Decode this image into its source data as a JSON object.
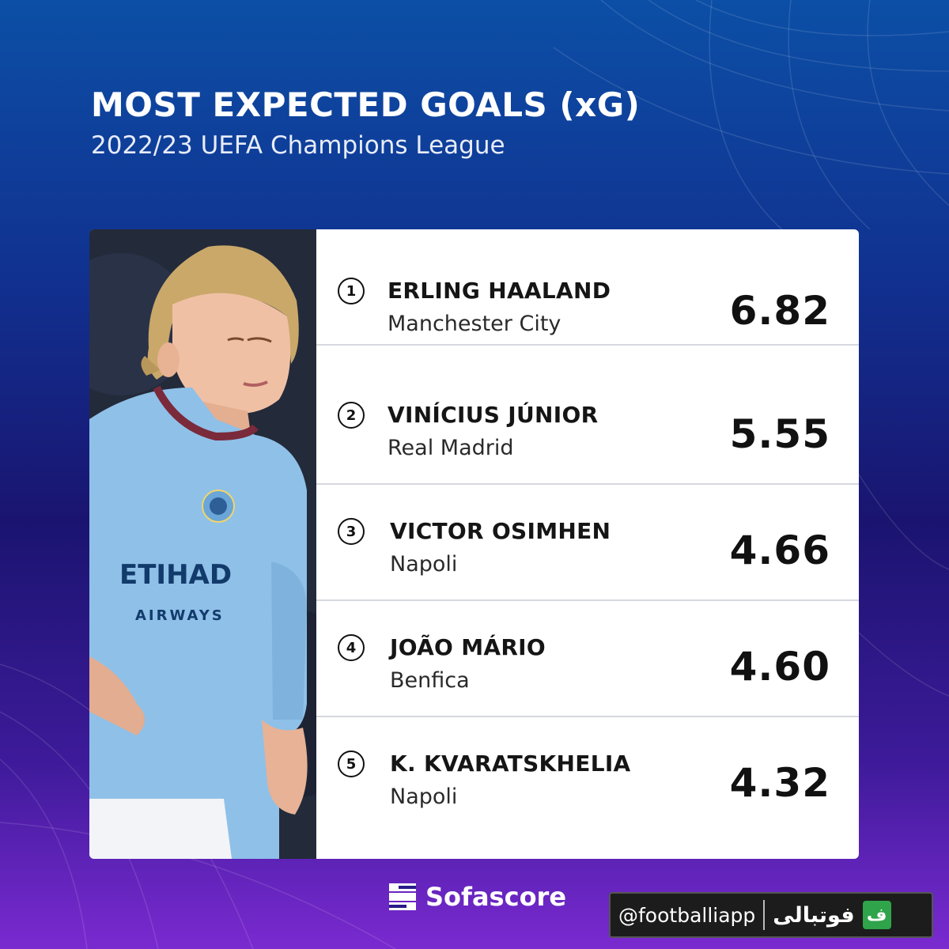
{
  "header": {
    "title": "MOST EXPECTED GOALS (xG)",
    "subtitle": "2022/23 UEFA Champions League"
  },
  "players": [
    {
      "rank": "1",
      "name": "ERLING HAALAND",
      "club": "Manchester City",
      "xg": "6.82"
    },
    {
      "rank": "2",
      "name": "VINÍCIUS JÚNIOR",
      "club": "Real Madrid",
      "xg": "5.55"
    },
    {
      "rank": "3",
      "name": "VICTOR OSIMHEN",
      "club": "Napoli",
      "xg": "4.66"
    },
    {
      "rank": "4",
      "name": "JOÃO MÁRIO",
      "club": "Benfica",
      "xg": "4.60"
    },
    {
      "rank": "5",
      "name": "K. KVARATSKHELIA",
      "club": "Napoli",
      "xg": "4.32"
    }
  ],
  "photo": {
    "shirt_text": "ETIHAD",
    "shirt_text2": "AIRWAYS"
  },
  "footer": {
    "brand": "Sofascore",
    "handle": "@footballiapp",
    "arabic": "فوتبالی",
    "logo_glyph": "ف"
  },
  "colors": {
    "bg_top": "#0c4fa6",
    "bg_bottom": "#7a2ad0",
    "card": "#ffffff",
    "shirt": "#8fc0e8",
    "badge_green": "#2fa44a"
  }
}
